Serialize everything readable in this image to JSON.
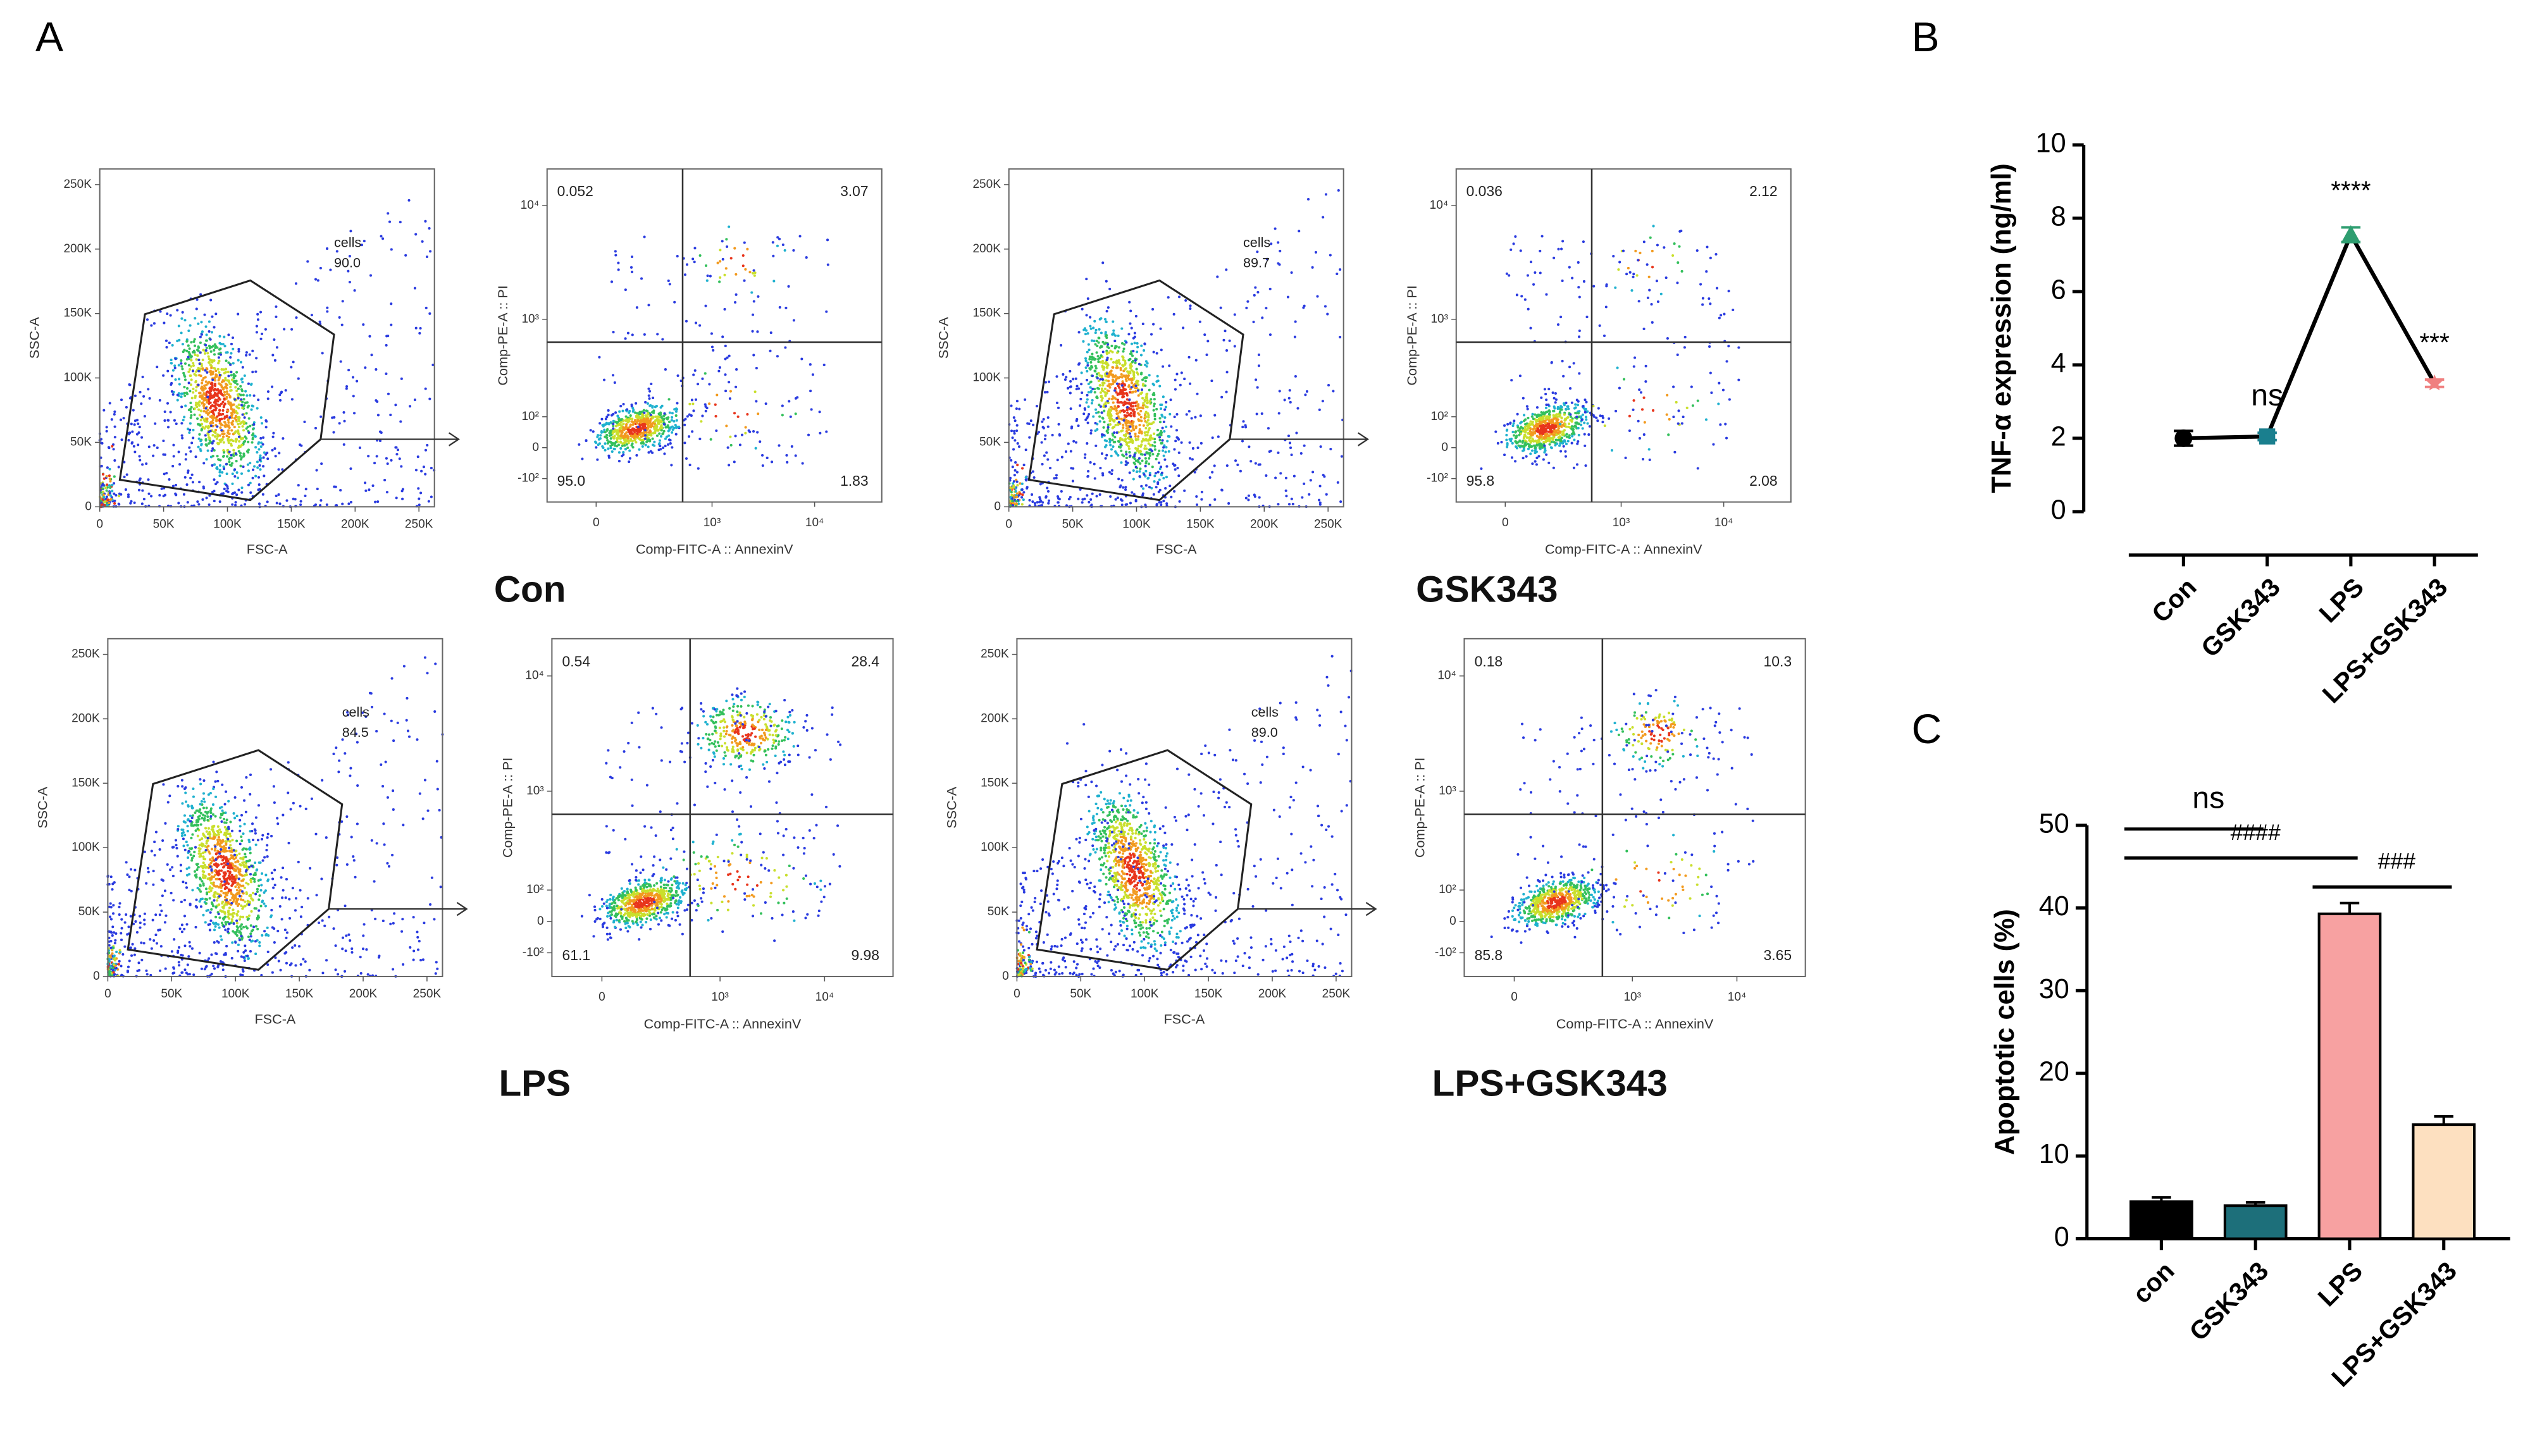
{
  "panel_labels": [
    "A",
    "B",
    "C"
  ],
  "gate_axes": {
    "xlabel": "FSC-A",
    "ylabel": "SSC-A",
    "xlim": [
      0,
      262144
    ],
    "ylim": [
      0,
      262144
    ],
    "xticks": [
      0,
      {
        "value": 50000,
        "label": "50K"
      },
      {
        "value": 100000,
        "label": "100K"
      },
      {
        "value": 150000,
        "label": "150K"
      },
      {
        "value": 200000,
        "label": "200K"
      },
      {
        "value": 250000,
        "label": "250K"
      }
    ],
    "yticks": [
      0,
      {
        "value": 50000,
        "label": "50K"
      },
      {
        "value": 100000,
        "label": "100K"
      },
      {
        "value": 150000,
        "label": "150K"
      },
      {
        "value": 200000,
        "label": "200K"
      },
      {
        "value": 250000,
        "label": "250K"
      }
    ]
  },
  "quadrant_axes": {
    "xlabel": "Comp-FITC-A :: AnnexinV",
    "ylabel": "Comp-PE-A :: PI",
    "xlim": [
      -200,
      45000
    ],
    "ylim": [
      -200,
      21000
    ],
    "xticks": [
      0,
      {
        "value": 1000,
        "label": "10³"
      },
      {
        "value": 10000,
        "label": "10⁴"
      }
    ],
    "yticks": [
      {
        "value": -100,
        "label": "-10²"
      },
      0,
      {
        "value": 100,
        "label": "10²"
      },
      {
        "value": 1000,
        "label": "10³"
      },
      {
        "value": 10000,
        "label": "10⁴"
      }
    ]
  },
  "flow_groups": [
    {
      "name": "Con",
      "gate_plot": {
        "gate_name": "cells",
        "gate_value": "90.0"
      },
      "quadrant_plot": {
        "quadrants": [
          "0.052",
          "3.07",
          "95.0",
          "1.83"
        ]
      }
    },
    {
      "name": "GSK343",
      "gate_plot": {
        "gate_name": "cells",
        "gate_value": "89.7"
      },
      "quadrant_plot": {
        "quadrants": [
          "0.036",
          "2.12",
          "95.8",
          "2.08"
        ]
      }
    },
    {
      "name": "LPS",
      "gate_plot": {
        "gate_name": "cells",
        "gate_value": "84.5"
      },
      "quadrant_plot": {
        "quadrants": [
          "0.54",
          "28.4",
          "61.1",
          "9.98"
        ]
      }
    },
    {
      "name": "LPS+GSK343",
      "gate_plot": {
        "gate_name": "cells",
        "gate_value": "89.0"
      },
      "quadrant_plot": {
        "quadrants": [
          "0.18",
          "10.3",
          "85.8",
          "3.65"
        ]
      }
    }
  ],
  "chart_data": [
    {
      "type": "line",
      "ylabel": "TNF-α expression (ng/ml)",
      "categories": [
        "Con",
        "GSK343",
        "LPS",
        "LPS+GSK343"
      ],
      "series": [
        {
          "values": [
            2.0,
            2.05,
            7.55,
            3.5
          ],
          "errors": [
            0.2,
            0.1,
            0.2,
            0.1
          ],
          "color": "#000000",
          "marker_colors": [
            "#000000",
            "#1a7f8e",
            "#2e9e70",
            "#f08080"
          ],
          "markers": [
            "circle",
            "square",
            "triangle",
            "star"
          ]
        }
      ],
      "ylim": [
        0,
        10
      ],
      "yticks": [
        0,
        2,
        4,
        6,
        8,
        10
      ],
      "annotations": [
        {
          "text": "ns",
          "category": "GSK343"
        },
        {
          "text": "****",
          "category": "LPS"
        },
        {
          "text": "***",
          "category": "LPS+GSK343"
        }
      ]
    },
    {
      "type": "bar",
      "ylabel": "Apoptotic cells (%)",
      "categories": [
        "con",
        "GSK343",
        "LPS",
        "LPS+GSK343"
      ],
      "values": [
        4.5,
        4.0,
        39.3,
        13.8
      ],
      "errors": [
        0.5,
        0.4,
        1.3,
        1.0
      ],
      "colors": [
        "#000000",
        "#1d6f7a",
        "#f7a1a1",
        "#fde0c0"
      ],
      "ylim": [
        0,
        50
      ],
      "yticks": [
        0,
        10,
        20,
        30,
        40,
        50
      ],
      "annotations": [
        {
          "text": "###",
          "between": [
            "LPS",
            "LPS+GSK343"
          ]
        },
        {
          "text": "####",
          "between": [
            "con",
            "LPS"
          ]
        },
        {
          "text": "ns",
          "between": [
            "con",
            "GSK343"
          ]
        }
      ]
    }
  ]
}
